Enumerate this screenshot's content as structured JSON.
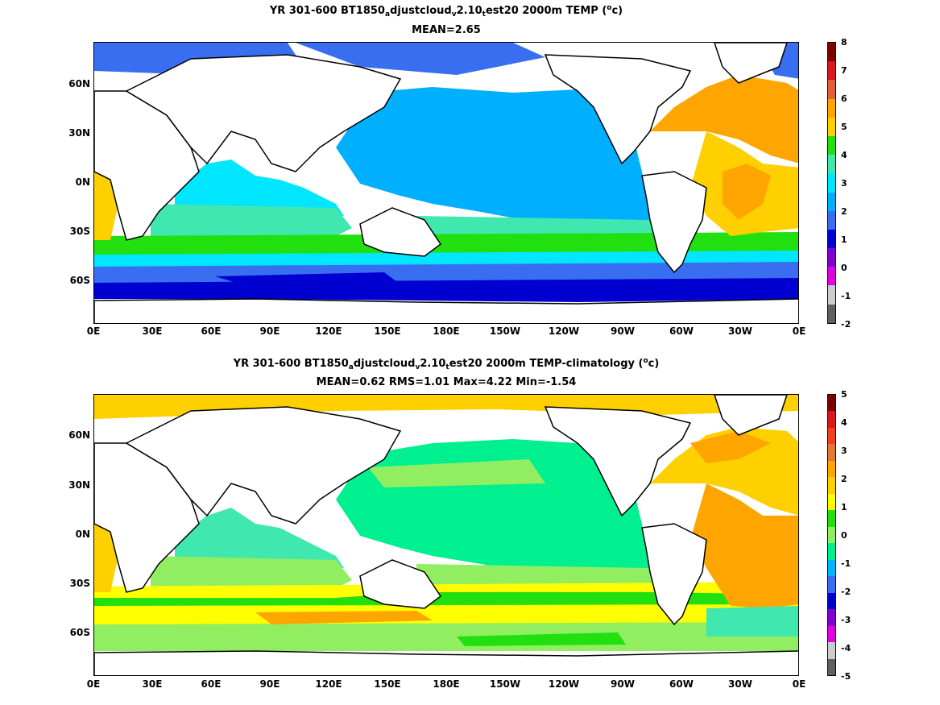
{
  "panel1": {
    "title_a": "YR 301-600 BT1850",
    "title_s1": "a",
    "title_b": "djustcloud",
    "title_s2": "v",
    "title_c": "2.10",
    "title_s3": "t",
    "title_d": "est20 2000m TEMP (",
    "title_o": "o",
    "title_e": "c)",
    "subtitle": "MEAN=2.65",
    "colorbar": {
      "labels": [
        "8",
        "7",
        "6",
        "5",
        "4",
        "3",
        "2",
        "1",
        "0",
        "-1",
        "-2"
      ],
      "colors": [
        "#7f0000",
        "#d7191c",
        "#e0603a",
        "#fea500",
        "#fed000",
        "#22e010",
        "#40e8b0",
        "#00e6ff",
        "#00b0ff",
        "#3a6ef0",
        "#0000d0",
        "#8000d0",
        "#e000e0",
        "#cccccc",
        "#606060"
      ]
    }
  },
  "panel2": {
    "title_a": "YR 301-600 BT1850",
    "title_s1": "a",
    "title_b": "djustcloud",
    "title_s2": "v",
    "title_c": "2.10",
    "title_s3": "t",
    "title_d": "est20 2000m TEMP-climatology (",
    "title_o": "o",
    "title_e": "c)",
    "subtitle": "MEAN=0.62   RMS=1.01   Max=4.22   Min=-1.54",
    "colorbar": {
      "labels": [
        "5",
        "4",
        "3",
        "2",
        "1",
        "0",
        "-1",
        "-2",
        "-3",
        "-4",
        "-5"
      ],
      "colors": [
        "#7f0000",
        "#d7191c",
        "#f04020",
        "#e07a30",
        "#fea500",
        "#fed000",
        "#ffff00",
        "#22e010",
        "#90ee60",
        "#00f090",
        "#00b8ff",
        "#3a6ef0",
        "#0000d0",
        "#8000d0",
        "#e000e0",
        "#cccccc",
        "#606060"
      ]
    }
  },
  "axes": {
    "xticks": [
      "0E",
      "30E",
      "60E",
      "90E",
      "120E",
      "150E",
      "180E",
      "150W",
      "120W",
      "90W",
      "60W",
      "30W",
      "0E"
    ],
    "yticks": [
      "60N",
      "30N",
      "0N",
      "30S",
      "60S"
    ]
  }
}
